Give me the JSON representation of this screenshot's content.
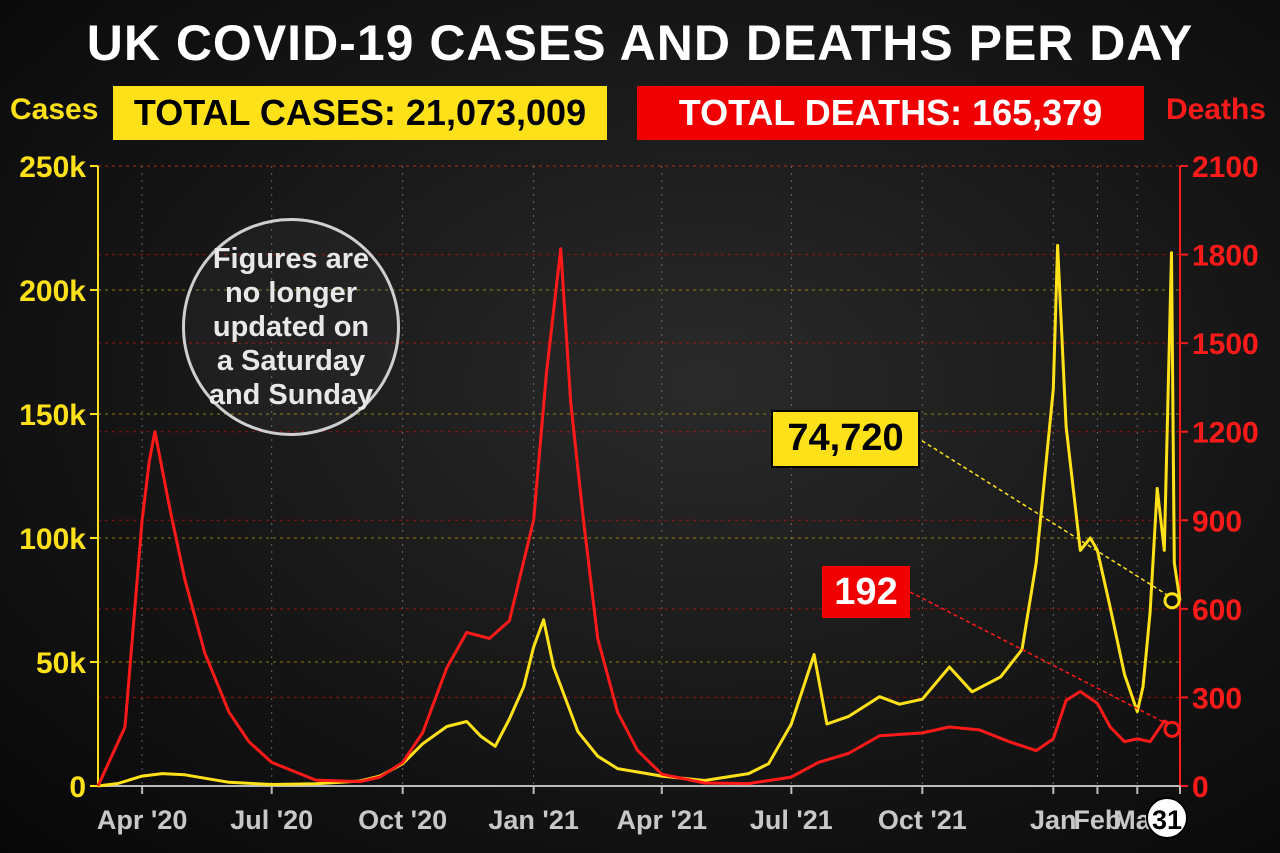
{
  "title": "UK COVID-19 CASES AND DEATHS PER DAY",
  "totals": {
    "cases_label": "TOTAL CASES: 21,073,009",
    "deaths_label": "TOTAL DEATHS: 165,379"
  },
  "note": "Figures are no longer updated on a Saturday and Sunday",
  "colors": {
    "cases": "#ffe11a",
    "deaths": "#ff1a1a",
    "background": "#111111"
  },
  "chart_data": {
    "type": "line",
    "title": "UK COVID-19 CASES AND DEATHS PER DAY",
    "x_range": [
      "2020-03-01",
      "2022-03-31"
    ],
    "x_ticks": [
      {
        "date": "2020-04-01",
        "label": "Apr '20"
      },
      {
        "date": "2020-07-01",
        "label": "Jul '20"
      },
      {
        "date": "2020-10-01",
        "label": "Oct '20"
      },
      {
        "date": "2021-01-01",
        "label": "Jan '21"
      },
      {
        "date": "2021-04-01",
        "label": "Apr '21"
      },
      {
        "date": "2021-07-01",
        "label": "Jul '21"
      },
      {
        "date": "2021-10-01",
        "label": "Oct '21"
      },
      {
        "date": "2022-01-01",
        "label": "Jan"
      },
      {
        "date": "2022-02-01",
        "label": "Feb"
      },
      {
        "date": "2022-03-01",
        "label": "Mar"
      },
      {
        "date": "2022-03-31",
        "label": "31",
        "highlight": true
      }
    ],
    "y_left": {
      "label": "Cases",
      "range": [
        0,
        250000
      ],
      "ticks": [
        {
          "value": 0,
          "label": "0"
        },
        {
          "value": 50000,
          "label": "50k"
        },
        {
          "value": 100000,
          "label": "100k"
        },
        {
          "value": 150000,
          "label": "150k"
        },
        {
          "value": 200000,
          "label": "200k"
        },
        {
          "value": 250000,
          "label": "250k"
        }
      ]
    },
    "y_right": {
      "label": "Deaths",
      "range": [
        0,
        2100
      ],
      "ticks": [
        {
          "value": 0,
          "label": "0"
        },
        {
          "value": 300,
          "label": "300"
        },
        {
          "value": 600,
          "label": "600"
        },
        {
          "value": 900,
          "label": "900"
        },
        {
          "value": 1200,
          "label": "1200"
        },
        {
          "value": 1500,
          "label": "1500"
        },
        {
          "value": 1800,
          "label": "1800"
        },
        {
          "value": 2100,
          "label": "2100"
        }
      ]
    },
    "grid": true,
    "series": [
      {
        "name": "Cases",
        "axis": "left",
        "color": "#ffe11a",
        "points": [
          [
            "2020-03-01",
            0
          ],
          [
            "2020-03-15",
            1000
          ],
          [
            "2020-04-01",
            4000
          ],
          [
            "2020-04-15",
            5000
          ],
          [
            "2020-05-01",
            4500
          ],
          [
            "2020-06-01",
            1500
          ],
          [
            "2020-07-01",
            600
          ],
          [
            "2020-08-01",
            900
          ],
          [
            "2020-09-01",
            2000
          ],
          [
            "2020-09-15",
            4000
          ],
          [
            "2020-10-01",
            9000
          ],
          [
            "2020-10-15",
            17000
          ],
          [
            "2020-11-01",
            24000
          ],
          [
            "2020-11-15",
            26000
          ],
          [
            "2020-11-25",
            20000
          ],
          [
            "2020-12-05",
            16000
          ],
          [
            "2020-12-15",
            27000
          ],
          [
            "2020-12-25",
            40000
          ],
          [
            "2021-01-01",
            56000
          ],
          [
            "2021-01-08",
            67000
          ],
          [
            "2021-01-15",
            48000
          ],
          [
            "2021-02-01",
            22000
          ],
          [
            "2021-02-15",
            12000
          ],
          [
            "2021-03-01",
            7000
          ],
          [
            "2021-04-01",
            4000
          ],
          [
            "2021-05-01",
            2200
          ],
          [
            "2021-06-01",
            5000
          ],
          [
            "2021-06-15",
            9000
          ],
          [
            "2021-07-01",
            25000
          ],
          [
            "2021-07-17",
            53000
          ],
          [
            "2021-07-26",
            25000
          ],
          [
            "2021-08-10",
            28000
          ],
          [
            "2021-09-01",
            36000
          ],
          [
            "2021-09-15",
            33000
          ],
          [
            "2021-10-01",
            35000
          ],
          [
            "2021-10-20",
            48000
          ],
          [
            "2021-11-05",
            38000
          ],
          [
            "2021-11-25",
            44000
          ],
          [
            "2021-12-10",
            55000
          ],
          [
            "2021-12-20",
            90000
          ],
          [
            "2022-01-01",
            160000
          ],
          [
            "2022-01-04",
            218000
          ],
          [
            "2022-01-10",
            145000
          ],
          [
            "2022-01-20",
            95000
          ],
          [
            "2022-01-27",
            100000
          ],
          [
            "2022-02-01",
            95000
          ],
          [
            "2022-02-10",
            72000
          ],
          [
            "2022-02-20",
            45000
          ],
          [
            "2022-03-01",
            30000
          ],
          [
            "2022-03-05",
            40000
          ],
          [
            "2022-03-10",
            70000
          ],
          [
            "2022-03-15",
            120000
          ],
          [
            "2022-03-20",
            95000
          ],
          [
            "2022-03-25",
            215000
          ],
          [
            "2022-03-27",
            90000
          ],
          [
            "2022-03-31",
            74720
          ]
        ]
      },
      {
        "name": "Deaths",
        "axis": "right",
        "color": "#ff1a1a",
        "points": [
          [
            "2020-03-01",
            0
          ],
          [
            "2020-03-20",
            200
          ],
          [
            "2020-04-01",
            900
          ],
          [
            "2020-04-06",
            1100
          ],
          [
            "2020-04-10",
            1200
          ],
          [
            "2020-04-20",
            950
          ],
          [
            "2020-05-01",
            700
          ],
          [
            "2020-05-15",
            450
          ],
          [
            "2020-06-01",
            250
          ],
          [
            "2020-06-15",
            150
          ],
          [
            "2020-07-01",
            80
          ],
          [
            "2020-08-01",
            20
          ],
          [
            "2020-09-01",
            15
          ],
          [
            "2020-09-15",
            30
          ],
          [
            "2020-10-01",
            80
          ],
          [
            "2020-10-15",
            180
          ],
          [
            "2020-11-01",
            400
          ],
          [
            "2020-11-15",
            520
          ],
          [
            "2020-12-01",
            500
          ],
          [
            "2020-12-15",
            560
          ],
          [
            "2021-01-01",
            900
          ],
          [
            "2021-01-10",
            1400
          ],
          [
            "2021-01-20",
            1820
          ],
          [
            "2021-01-27",
            1300
          ],
          [
            "2021-02-05",
            900
          ],
          [
            "2021-02-15",
            500
          ],
          [
            "2021-03-01",
            250
          ],
          [
            "2021-03-15",
            120
          ],
          [
            "2021-04-01",
            40
          ],
          [
            "2021-05-01",
            10
          ],
          [
            "2021-06-01",
            8
          ],
          [
            "2021-07-01",
            30
          ],
          [
            "2021-07-20",
            80
          ],
          [
            "2021-08-10",
            110
          ],
          [
            "2021-09-01",
            170
          ],
          [
            "2021-10-01",
            180
          ],
          [
            "2021-10-20",
            200
          ],
          [
            "2021-11-10",
            190
          ],
          [
            "2021-12-01",
            150
          ],
          [
            "2021-12-20",
            120
          ],
          [
            "2022-01-01",
            160
          ],
          [
            "2022-01-10",
            290
          ],
          [
            "2022-01-20",
            320
          ],
          [
            "2022-02-01",
            280
          ],
          [
            "2022-02-10",
            200
          ],
          [
            "2022-02-20",
            150
          ],
          [
            "2022-03-01",
            160
          ],
          [
            "2022-03-10",
            150
          ],
          [
            "2022-03-20",
            220
          ],
          [
            "2022-03-31",
            192
          ]
        ]
      }
    ],
    "annotations": [
      {
        "series": "Cases",
        "date": "2022-03-31",
        "label": "74,720"
      },
      {
        "series": "Deaths",
        "date": "2022-03-31",
        "label": "192"
      }
    ]
  }
}
